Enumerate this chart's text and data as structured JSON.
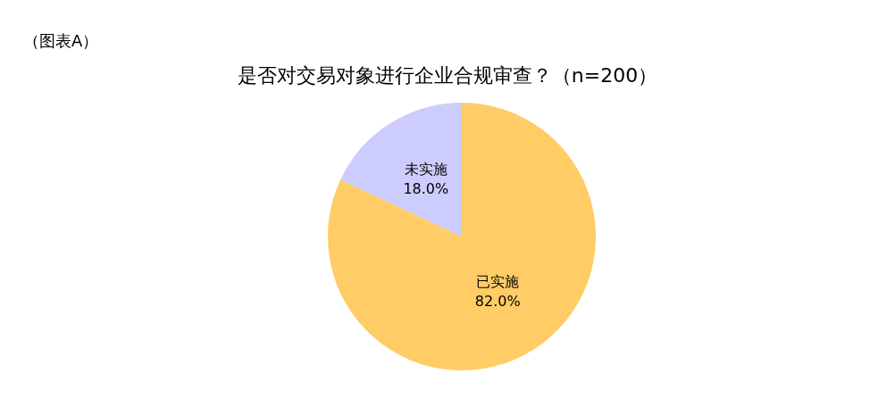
{
  "chart_data": {
    "type": "pie",
    "title": "是否对交易对象进行企业合规审查？（n=200）",
    "annotations": [
      "（图表A）"
    ],
    "categories": [
      "已实施",
      "未实施"
    ],
    "values": [
      82.0,
      18.0
    ],
    "colors": [
      "#ffcc66",
      "#ccccff"
    ],
    "value_labels": [
      "82.0%",
      "18.0%"
    ],
    "legend": false
  }
}
